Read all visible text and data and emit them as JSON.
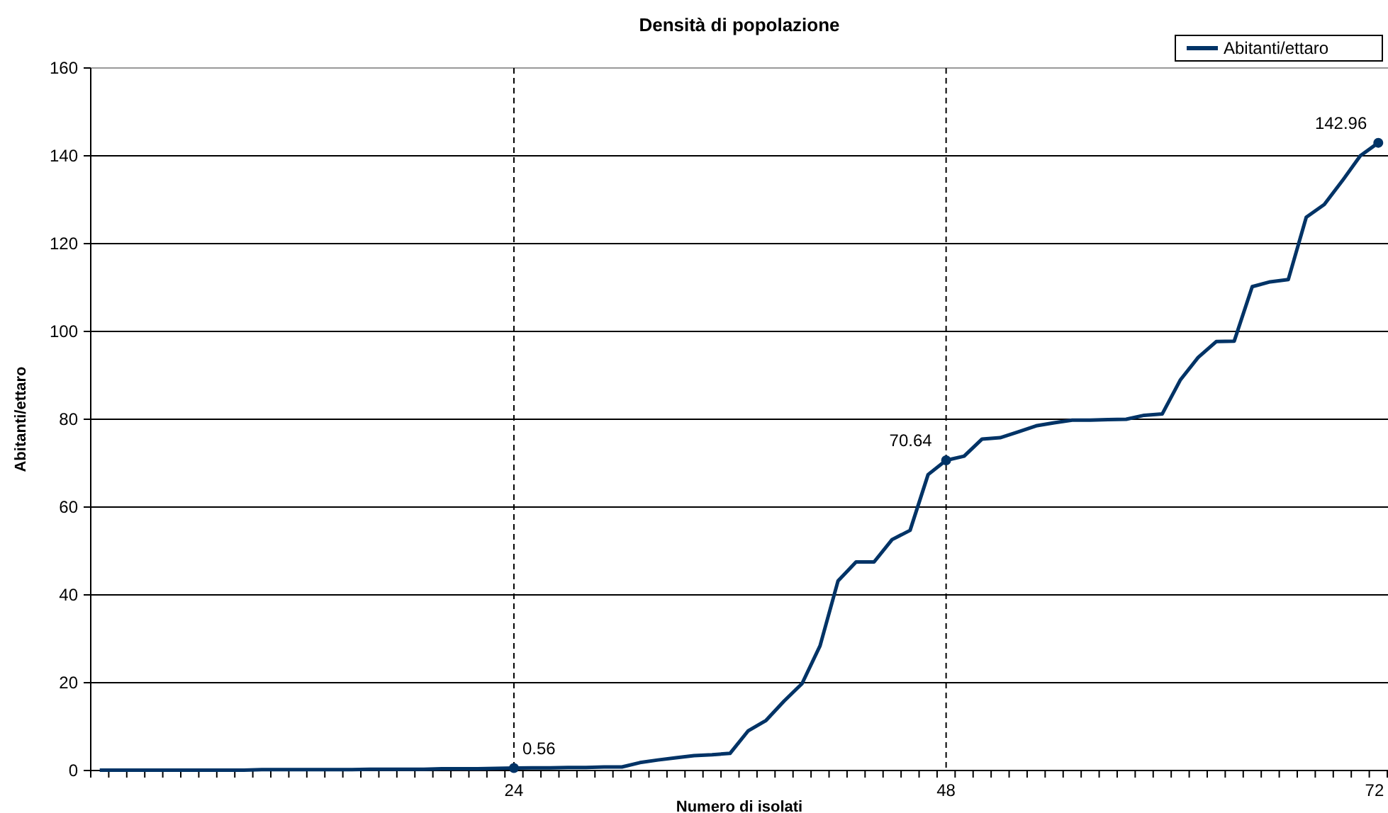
{
  "chart_data": {
    "type": "line",
    "title": "Densità di popolazione",
    "xlabel": "Numero di isolati",
    "ylabel": "Abitanti/ettaro",
    "categories": [
      null,
      null,
      null,
      null,
      null,
      null,
      null,
      null,
      null,
      null,
      null,
      null,
      null,
      null,
      null,
      null,
      null,
      null,
      null,
      null,
      null,
      null,
      null,
      "24",
      null,
      null,
      null,
      null,
      null,
      null,
      null,
      null,
      null,
      null,
      null,
      null,
      null,
      null,
      null,
      null,
      null,
      null,
      null,
      null,
      null,
      null,
      null,
      "48",
      null,
      null,
      null,
      null,
      null,
      null,
      null,
      null,
      null,
      null,
      null,
      null,
      null,
      null,
      null,
      null,
      null,
      null,
      null,
      null,
      null,
      null,
      null,
      "72"
    ],
    "series": [
      {
        "name": "Abitanti/ettaro",
        "color": "#003366",
        "values": [
          0.1,
          0.1,
          0.1,
          0.1,
          0.1,
          0.1,
          0.1,
          0.1,
          0.1,
          0.2,
          0.2,
          0.2,
          0.2,
          0.2,
          0.2,
          0.3,
          0.3,
          0.3,
          0.3,
          0.4,
          0.4,
          0.4,
          0.5,
          0.56,
          0.6,
          0.6,
          0.7,
          0.7,
          0.8,
          0.8,
          1.8,
          2.4,
          2.9,
          3.4,
          3.6,
          3.9,
          9.0,
          11.4,
          15.8,
          19.8,
          28.4,
          43.2,
          47.5,
          47.5,
          52.6,
          54.7,
          67.4,
          70.64,
          71.6,
          75.5,
          75.8,
          77.1,
          78.5,
          79.2,
          79.8,
          79.8,
          79.9,
          80.0,
          80.9,
          81.2,
          88.9,
          94.1,
          97.7,
          97.8,
          110.2,
          111.3,
          111.8,
          126.0,
          128.9,
          134.3,
          140.0,
          142.96
        ],
        "value_labels": [
          null,
          null,
          null,
          null,
          null,
          null,
          null,
          null,
          null,
          null,
          null,
          null,
          null,
          null,
          null,
          null,
          null,
          null,
          null,
          null,
          null,
          null,
          null,
          "0.56",
          null,
          null,
          null,
          null,
          null,
          null,
          null,
          null,
          null,
          null,
          null,
          null,
          null,
          null,
          null,
          null,
          null,
          null,
          null,
          null,
          null,
          null,
          null,
          "70.64",
          null,
          null,
          null,
          null,
          null,
          null,
          null,
          null,
          null,
          null,
          null,
          null,
          null,
          null,
          null,
          null,
          null,
          null,
          null,
          null,
          null,
          null,
          null,
          "142.96"
        ]
      }
    ],
    "ylim": [
      0,
      160
    ],
    "yticks": [
      0,
      20,
      40,
      60,
      80,
      100,
      120,
      140,
      160
    ],
    "grid": "y",
    "legend": "top right",
    "line_style": "solid",
    "ref_lines": [
      {
        "axis": "x",
        "value": "24",
        "line_style": "dashed"
      },
      {
        "axis": "x",
        "value": "48",
        "line_style": "dashed"
      }
    ]
  }
}
